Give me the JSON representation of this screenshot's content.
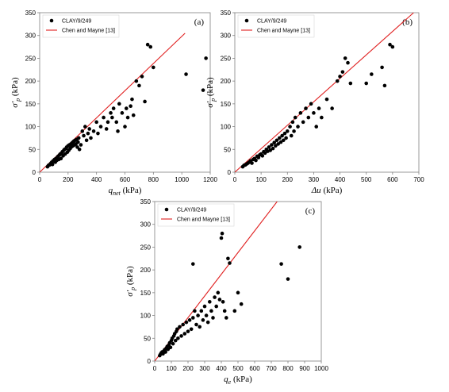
{
  "chart_data": [
    {
      "panel": "(a)",
      "type": "scatter",
      "xlabel": "q_net (kPa)",
      "ylabel": "σ'_p (kPa)",
      "xlim": [
        0,
        1200
      ],
      "ylim": [
        0,
        350
      ],
      "xticks": [
        0,
        200,
        400,
        600,
        800,
        1000,
        1200
      ],
      "yticks": [
        0,
        50,
        100,
        150,
        200,
        250,
        300,
        350
      ],
      "legend": {
        "position": "top-left",
        "entries": [
          "CLAY/9/249",
          "Chen and Mayne [13]"
        ]
      },
      "series": [
        {
          "name": "CLAY/9/249",
          "points": [
            [
              55,
              12
            ],
            [
              62,
              15
            ],
            [
              70,
              16
            ],
            [
              75,
              18
            ],
            [
              80,
              20
            ],
            [
              85,
              22
            ],
            [
              90,
              17
            ],
            [
              95,
              25
            ],
            [
              100,
              24
            ],
            [
              105,
              28
            ],
            [
              110,
              22
            ],
            [
              115,
              30
            ],
            [
              120,
              26
            ],
            [
              125,
              33
            ],
            [
              130,
              35
            ],
            [
              135,
              28
            ],
            [
              140,
              38
            ],
            [
              145,
              40
            ],
            [
              150,
              30
            ],
            [
              155,
              42
            ],
            [
              160,
              45
            ],
            [
              165,
              36
            ],
            [
              170,
              48
            ],
            [
              175,
              50
            ],
            [
              180,
              40
            ],
            [
              185,
              52
            ],
            [
              190,
              55
            ],
            [
              195,
              44
            ],
            [
              200,
              58
            ],
            [
              205,
              48
            ],
            [
              210,
              60
            ],
            [
              215,
              52
            ],
            [
              220,
              62
            ],
            [
              225,
              56
            ],
            [
              230,
              65
            ],
            [
              235,
              58
            ],
            [
              240,
              68
            ],
            [
              245,
              60
            ],
            [
              250,
              70
            ],
            [
              255,
              62
            ],
            [
              260,
              72
            ],
            [
              265,
              55
            ],
            [
              270,
              66
            ],
            [
              275,
              75
            ],
            [
              280,
              50
            ],
            [
              290,
              60
            ],
            [
              300,
              90
            ],
            [
              310,
              80
            ],
            [
              320,
              100
            ],
            [
              330,
              70
            ],
            [
              340,
              85
            ],
            [
              350,
              95
            ],
            [
              360,
              75
            ],
            [
              380,
              90
            ],
            [
              400,
              110
            ],
            [
              410,
              85
            ],
            [
              430,
              100
            ],
            [
              450,
              120
            ],
            [
              470,
              95
            ],
            [
              480,
              110
            ],
            [
              500,
              130
            ],
            [
              510,
              120
            ],
            [
              520,
              140
            ],
            [
              540,
              110
            ],
            [
              550,
              90
            ],
            [
              560,
              150
            ],
            [
              580,
              130
            ],
            [
              600,
              100
            ],
            [
              610,
              140
            ],
            [
              620,
              120
            ],
            [
              640,
              145
            ],
            [
              650,
              160
            ],
            [
              660,
              125
            ],
            [
              680,
              200
            ],
            [
              700,
              190
            ],
            [
              720,
              210
            ],
            [
              740,
              155
            ],
            [
              760,
              280
            ],
            [
              780,
              275
            ],
            [
              800,
              230
            ],
            [
              1030,
              215
            ],
            [
              1150,
              180
            ],
            [
              1170,
              250
            ]
          ]
        },
        {
          "name": "Chen and Mayne [13]",
          "line": [
            [
              0,
              0
            ],
            [
              1023,
              305
            ]
          ]
        }
      ]
    },
    {
      "panel": "(b)",
      "type": "scatter",
      "xlabel": "Δu (kPa)",
      "ylabel": "σ'_p (kPa)",
      "xlim": [
        0,
        700
      ],
      "ylim": [
        0,
        350
      ],
      "xticks": [
        0,
        100,
        200,
        300,
        400,
        500,
        600,
        700
      ],
      "yticks": [
        0,
        50,
        100,
        150,
        200,
        250,
        300,
        350
      ],
      "legend": {
        "position": "top-left",
        "entries": [
          "CLAY/9/249",
          "Chen and Mayne [13]"
        ]
      },
      "series": [
        {
          "name": "CLAY/9/249",
          "points": [
            [
              30,
              12
            ],
            [
              35,
              15
            ],
            [
              40,
              16
            ],
            [
              45,
              18
            ],
            [
              50,
              20
            ],
            [
              55,
              22
            ],
            [
              60,
              25
            ],
            [
              65,
              20
            ],
            [
              70,
              28
            ],
            [
              75,
              30
            ],
            [
              80,
              26
            ],
            [
              85,
              35
            ],
            [
              90,
              32
            ],
            [
              95,
              38
            ],
            [
              100,
              40
            ],
            [
              105,
              36
            ],
            [
              110,
              45
            ],
            [
              115,
              42
            ],
            [
              120,
              50
            ],
            [
              125,
              46
            ],
            [
              130,
              55
            ],
            [
              135,
              48
            ],
            [
              140,
              60
            ],
            [
              145,
              52
            ],
            [
              150,
              65
            ],
            [
              155,
              58
            ],
            [
              160,
              70
            ],
            [
              165,
              62
            ],
            [
              170,
              75
            ],
            [
              175,
              66
            ],
            [
              180,
              80
            ],
            [
              185,
              70
            ],
            [
              190,
              85
            ],
            [
              195,
              75
            ],
            [
              200,
              90
            ],
            [
              210,
              100
            ],
            [
              215,
              80
            ],
            [
              220,
              110
            ],
            [
              225,
              90
            ],
            [
              230,
              120
            ],
            [
              240,
              100
            ],
            [
              250,
              130
            ],
            [
              260,
              110
            ],
            [
              270,
              140
            ],
            [
              280,
              120
            ],
            [
              290,
              150
            ],
            [
              300,
              130
            ],
            [
              310,
              100
            ],
            [
              320,
              140
            ],
            [
              330,
              120
            ],
            [
              350,
              160
            ],
            [
              370,
              140
            ],
            [
              390,
              200
            ],
            [
              400,
              210
            ],
            [
              410,
              220
            ],
            [
              420,
              250
            ],
            [
              430,
              240
            ],
            [
              440,
              195
            ],
            [
              500,
              195
            ],
            [
              520,
              215
            ],
            [
              560,
              230
            ],
            [
              570,
              190
            ],
            [
              590,
              280
            ],
            [
              600,
              275
            ]
          ]
        },
        {
          "name": "Chen and Mayne [13]",
          "line": [
            [
              0,
              0
            ],
            [
              680,
              350
            ]
          ]
        }
      ]
    },
    {
      "panel": "(c)",
      "type": "scatter",
      "xlabel": "q_e (kPa)",
      "ylabel": "σ'_p (kPa)",
      "xlim": [
        0,
        1000
      ],
      "ylim": [
        0,
        350
      ],
      "xticks": [
        0,
        100,
        200,
        300,
        400,
        500,
        600,
        700,
        800,
        900,
        1000
      ],
      "yticks": [
        0,
        50,
        100,
        150,
        200,
        250,
        300,
        350
      ],
      "legend": {
        "position": "top-left",
        "entries": [
          "CLAY/9/249",
          "Chen and Mayne [13]"
        ]
      },
      "series": [
        {
          "name": "CLAY/9/249",
          "points": [
            [
              30,
              12
            ],
            [
              35,
              15
            ],
            [
              40,
              18
            ],
            [
              45,
              20
            ],
            [
              50,
              16
            ],
            [
              55,
              22
            ],
            [
              60,
              25
            ],
            [
              65,
              20
            ],
            [
              70,
              28
            ],
            [
              75,
              32
            ],
            [
              80,
              26
            ],
            [
              85,
              35
            ],
            [
              90,
              40
            ],
            [
              95,
              30
            ],
            [
              100,
              45
            ],
            [
              105,
              50
            ],
            [
              110,
              38
            ],
            [
              115,
              55
            ],
            [
              120,
              60
            ],
            [
              125,
              45
            ],
            [
              130,
              65
            ],
            [
              135,
              70
            ],
            [
              140,
              50
            ],
            [
              150,
              75
            ],
            [
              160,
              55
            ],
            [
              170,
              80
            ],
            [
              180,
              60
            ],
            [
              190,
              85
            ],
            [
              200,
              65
            ],
            [
              210,
              90
            ],
            [
              220,
              70
            ],
            [
              230,
              95
            ],
            [
              240,
              110
            ],
            [
              250,
              80
            ],
            [
              260,
              100
            ],
            [
              270,
              75
            ],
            [
              280,
              110
            ],
            [
              290,
              90
            ],
            [
              300,
              120
            ],
            [
              310,
              100
            ],
            [
              320,
              85
            ],
            [
              330,
              130
            ],
            [
              340,
              110
            ],
            [
              350,
              95
            ],
            [
              360,
              140
            ],
            [
              370,
              120
            ],
            [
              380,
              150
            ],
            [
              390,
              135
            ],
            [
              400,
              270
            ],
            [
              405,
              280
            ],
            [
              410,
              130
            ],
            [
              420,
              110
            ],
            [
              430,
              95
            ],
            [
              440,
              225
            ],
            [
              450,
              215
            ],
            [
              480,
              110
            ],
            [
              500,
              150
            ],
            [
              520,
              125
            ],
            [
              230,
              213
            ],
            [
              760,
              213
            ],
            [
              800,
              180
            ],
            [
              870,
              250
            ]
          ]
        },
        {
          "name": "Chen and Mayne [13]",
          "line": [
            [
              0,
              0
            ],
            [
              735,
              350
            ]
          ]
        }
      ]
    }
  ],
  "colors": {
    "points": "#000000",
    "fit_line": "#e02020",
    "axes": "#808080"
  }
}
